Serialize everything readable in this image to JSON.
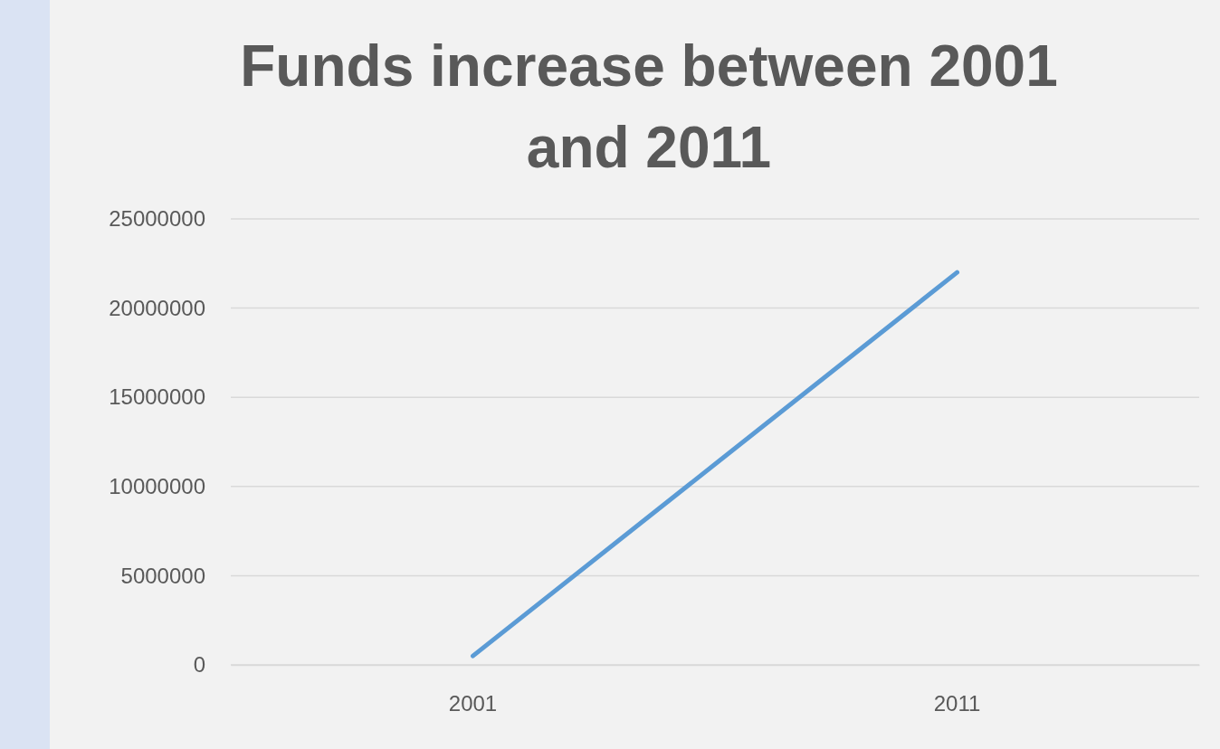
{
  "chart_data": {
    "type": "line",
    "title": "Funds increase between 2001 and 2011",
    "categories": [
      "2001",
      "2011"
    ],
    "series": [
      {
        "color": "#5b9bd5",
        "values": [
          500000,
          22000000
        ]
      }
    ],
    "ylim": [
      0,
      25000000
    ],
    "yticks": [
      0,
      5000000,
      10000000,
      15000000,
      20000000,
      25000000
    ],
    "grid": "y",
    "marker": "none",
    "line_style": "solid"
  }
}
